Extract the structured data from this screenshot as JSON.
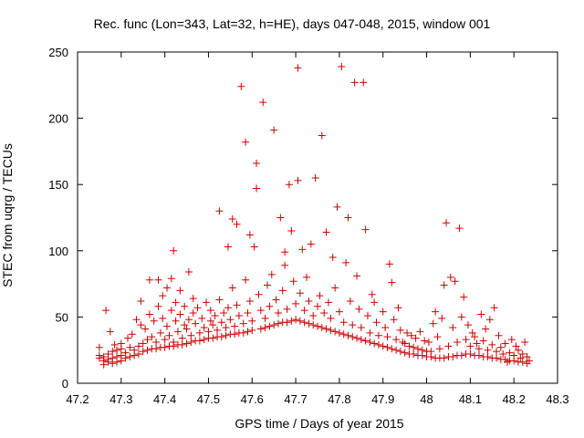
{
  "chart_data": {
    "type": "scatter",
    "title": "Rec. func (Lon=343, Lat=32, h=HE), days 047-048, 2015, window 001",
    "xlabel": "GPS time / Days of year 2015",
    "ylabel": "STEC from uqrg / TECUs",
    "xlim": [
      47.2,
      48.3
    ],
    "ylim": [
      0,
      250
    ],
    "xticks": [
      "47.2",
      "47.3",
      "47.4",
      "47.5",
      "47.6",
      "47.7",
      "47.8",
      "47.9",
      "48",
      "48.1",
      "48.2",
      "48.3"
    ],
    "yticks": [
      "0",
      "50",
      "100",
      "150",
      "200",
      "250"
    ],
    "grid": false,
    "legend": "none",
    "marker": "+",
    "color": "#cc0000",
    "series": [
      {
        "points": [
          [
            47.25,
            19
          ],
          [
            47.25,
            21
          ],
          [
            47.25,
            27
          ],
          [
            47.26,
            14
          ],
          [
            47.26,
            17
          ],
          [
            47.26,
            20
          ],
          [
            47.265,
            55
          ],
          [
            47.27,
            16
          ],
          [
            47.27,
            18
          ],
          [
            47.27,
            22
          ],
          [
            47.275,
            39
          ],
          [
            47.28,
            15
          ],
          [
            47.28,
            19
          ],
          [
            47.28,
            24
          ],
          [
            47.285,
            29
          ],
          [
            47.29,
            16
          ],
          [
            47.29,
            20
          ],
          [
            47.29,
            25
          ],
          [
            47.3,
            17
          ],
          [
            47.3,
            21
          ],
          [
            47.3,
            26
          ],
          [
            47.3,
            30
          ],
          [
            47.31,
            19
          ],
          [
            47.31,
            23
          ],
          [
            47.315,
            34
          ],
          [
            47.32,
            20
          ],
          [
            47.32,
            27
          ],
          [
            47.325,
            37
          ],
          [
            47.33,
            21
          ],
          [
            47.33,
            25
          ],
          [
            47.335,
            48
          ],
          [
            47.34,
            22
          ],
          [
            47.34,
            28
          ],
          [
            47.345,
            44
          ],
          [
            47.345,
            62
          ],
          [
            47.35,
            24
          ],
          [
            47.35,
            30
          ],
          [
            47.355,
            41
          ],
          [
            47.36,
            25
          ],
          [
            47.36,
            33
          ],
          [
            47.365,
            52
          ],
          [
            47.365,
            78
          ],
          [
            47.37,
            26
          ],
          [
            47.37,
            35
          ],
          [
            47.375,
            47
          ],
          [
            47.38,
            26
          ],
          [
            47.38,
            31
          ],
          [
            47.385,
            58
          ],
          [
            47.385,
            78
          ],
          [
            47.39,
            27
          ],
          [
            47.39,
            38
          ],
          [
            47.395,
            49
          ],
          [
            47.395,
            66
          ],
          [
            47.4,
            27
          ],
          [
            47.4,
            33
          ],
          [
            47.405,
            43
          ],
          [
            47.405,
            72
          ],
          [
            47.41,
            28
          ],
          [
            47.41,
            36
          ],
          [
            47.415,
            55
          ],
          [
            47.415,
            79
          ],
          [
            47.42,
            28
          ],
          [
            47.42,
            31
          ],
          [
            47.42,
            100
          ],
          [
            47.425,
            47
          ],
          [
            47.425,
            61
          ],
          [
            47.43,
            29
          ],
          [
            47.43,
            39
          ],
          [
            47.435,
            52
          ],
          [
            47.435,
            70
          ],
          [
            47.44,
            29
          ],
          [
            47.44,
            34
          ],
          [
            47.445,
            44
          ],
          [
            47.445,
            58
          ],
          [
            47.45,
            30
          ],
          [
            47.45,
            41
          ],
          [
            47.455,
            48
          ],
          [
            47.455,
            84
          ],
          [
            47.46,
            31
          ],
          [
            47.46,
            36
          ],
          [
            47.465,
            53
          ],
          [
            47.465,
            64
          ],
          [
            47.47,
            32
          ],
          [
            47.47,
            45
          ],
          [
            47.475,
            57
          ],
          [
            47.48,
            32
          ],
          [
            47.48,
            38
          ],
          [
            47.485,
            49
          ],
          [
            47.49,
            33
          ],
          [
            47.49,
            42
          ],
          [
            47.495,
            61
          ],
          [
            47.5,
            34
          ],
          [
            47.5,
            39
          ],
          [
            47.505,
            47
          ],
          [
            47.505,
            55
          ],
          [
            47.51,
            34
          ],
          [
            47.51,
            44
          ],
          [
            47.515,
            51
          ],
          [
            47.52,
            35
          ],
          [
            47.52,
            40
          ],
          [
            47.525,
            63
          ],
          [
            47.525,
            130
          ],
          [
            47.53,
            35
          ],
          [
            47.53,
            46
          ],
          [
            47.535,
            53
          ],
          [
            47.54,
            36
          ],
          [
            47.54,
            42
          ],
          [
            47.545,
            57
          ],
          [
            47.545,
            103
          ],
          [
            47.55,
            37
          ],
          [
            47.55,
            48
          ],
          [
            47.555,
            72
          ],
          [
            47.555,
            124
          ],
          [
            47.56,
            37
          ],
          [
            47.56,
            43
          ],
          [
            47.565,
            59
          ],
          [
            47.565,
            120
          ],
          [
            47.57,
            38
          ],
          [
            47.57,
            51
          ],
          [
            47.575,
            224
          ],
          [
            47.58,
            38
          ],
          [
            47.58,
            45
          ],
          [
            47.585,
            78
          ],
          [
            47.585,
            182
          ],
          [
            47.59,
            39
          ],
          [
            47.59,
            53
          ],
          [
            47.595,
            62
          ],
          [
            47.595,
            112
          ],
          [
            47.6,
            40
          ],
          [
            47.6,
            47
          ],
          [
            47.605,
            103
          ],
          [
            47.61,
            166
          ],
          [
            47.61,
            147
          ],
          [
            47.615,
            67
          ],
          [
            47.62,
            41
          ],
          [
            47.62,
            55
          ],
          [
            47.625,
            212
          ],
          [
            47.63,
            42
          ],
          [
            47.63,
            49
          ],
          [
            47.635,
            74
          ],
          [
            47.64,
            43
          ],
          [
            47.64,
            58
          ],
          [
            47.645,
            82
          ],
          [
            47.65,
            44
          ],
          [
            47.65,
            191
          ],
          [
            47.655,
            63
          ],
          [
            47.66,
            45
          ],
          [
            47.66,
            53
          ],
          [
            47.665,
            125
          ],
          [
            47.67,
            46
          ],
          [
            47.67,
            70
          ],
          [
            47.675,
            99
          ],
          [
            47.675,
            89
          ],
          [
            47.68,
            46
          ],
          [
            47.68,
            56
          ],
          [
            47.685,
            150
          ],
          [
            47.69,
            47
          ],
          [
            47.69,
            115
          ],
          [
            47.695,
            77
          ],
          [
            47.7,
            48
          ],
          [
            47.7,
            60
          ],
          [
            47.705,
            153
          ],
          [
            47.705,
            238
          ],
          [
            47.71,
            47
          ],
          [
            47.71,
            68
          ],
          [
            47.715,
            101
          ],
          [
            47.72,
            46
          ],
          [
            47.72,
            55
          ],
          [
            47.725,
            80
          ],
          [
            47.73,
            45
          ],
          [
            47.73,
            62
          ],
          [
            47.735,
            105
          ],
          [
            47.74,
            44
          ],
          [
            47.74,
            51
          ],
          [
            47.745,
            155
          ],
          [
            47.75,
            43
          ],
          [
            47.75,
            58
          ],
          [
            47.755,
            66
          ],
          [
            47.76,
            42
          ],
          [
            47.76,
            187
          ],
          [
            47.765,
            53
          ],
          [
            47.77,
            41
          ],
          [
            47.77,
            114
          ],
          [
            47.775,
            61
          ],
          [
            47.78,
            40
          ],
          [
            47.78,
            49
          ],
          [
            47.785,
            95
          ],
          [
            47.79,
            39
          ],
          [
            47.79,
            72
          ],
          [
            47.795,
            133
          ],
          [
            47.8,
            38
          ],
          [
            47.8,
            54
          ],
          [
            47.805,
            239
          ],
          [
            47.81,
            37
          ],
          [
            47.81,
            46
          ],
          [
            47.815,
            91
          ],
          [
            47.82,
            36
          ],
          [
            47.82,
            125
          ],
          [
            47.825,
            62
          ],
          [
            47.83,
            35
          ],
          [
            47.83,
            44
          ],
          [
            47.835,
            227
          ],
          [
            47.84,
            34
          ],
          [
            47.84,
            81
          ],
          [
            47.845,
            56
          ],
          [
            47.85,
            33
          ],
          [
            47.85,
            42
          ],
          [
            47.855,
            227
          ],
          [
            47.86,
            32
          ],
          [
            47.86,
            116
          ],
          [
            47.865,
            51
          ],
          [
            47.87,
            31
          ],
          [
            47.87,
            38
          ],
          [
            47.875,
            67
          ],
          [
            47.88,
            30
          ],
          [
            47.88,
            61
          ],
          [
            47.885,
            46
          ],
          [
            47.89,
            29
          ],
          [
            47.89,
            36
          ],
          [
            47.9,
            28
          ],
          [
            47.9,
            54
          ],
          [
            47.905,
            42
          ],
          [
            47.91,
            27
          ],
          [
            47.91,
            35
          ],
          [
            47.915,
            90
          ],
          [
            47.92,
            26
          ],
          [
            47.92,
            76
          ],
          [
            47.925,
            48
          ],
          [
            47.93,
            25
          ],
          [
            47.93,
            33
          ],
          [
            47.935,
            57
          ],
          [
            47.94,
            24
          ],
          [
            47.94,
            40
          ],
          [
            47.945,
            31
          ],
          [
            47.95,
            23
          ],
          [
            47.95,
            30
          ],
          [
            47.955,
            38
          ],
          [
            47.96,
            22
          ],
          [
            47.96,
            28
          ],
          [
            47.965,
            36
          ],
          [
            47.97,
            22
          ],
          [
            47.97,
            27
          ],
          [
            47.975,
            34
          ],
          [
            47.98,
            21
          ],
          [
            47.98,
            26
          ],
          [
            47.985,
            39
          ],
          [
            47.99,
            21
          ],
          [
            47.99,
            25
          ],
          [
            47.995,
            32
          ],
          [
            48,
            20
          ],
          [
            48,
            24
          ],
          [
            48.005,
            31
          ],
          [
            48.01,
            20
          ],
          [
            48.01,
            24
          ],
          [
            48.015,
            45
          ],
          [
            48.02,
            19
          ],
          [
            48.02,
            54
          ],
          [
            48.025,
            35
          ],
          [
            48.03,
            19
          ],
          [
            48.03,
            26
          ],
          [
            48.035,
            49
          ],
          [
            48.04,
            19
          ],
          [
            48.04,
            74
          ],
          [
            48.045,
            121
          ],
          [
            48.05,
            20
          ],
          [
            48.05,
            28
          ],
          [
            48.055,
            80
          ],
          [
            48.06,
            20
          ],
          [
            48.06,
            42
          ],
          [
            48.065,
            77
          ],
          [
            48.07,
            21
          ],
          [
            48.07,
            31
          ],
          [
            48.075,
            117
          ],
          [
            48.08,
            21
          ],
          [
            48.08,
            50
          ],
          [
            48.085,
            65
          ],
          [
            48.09,
            22
          ],
          [
            48.09,
            33
          ],
          [
            48.095,
            44
          ],
          [
            48.1,
            22
          ],
          [
            48.1,
            28
          ],
          [
            48.105,
            38
          ],
          [
            48.11,
            21
          ],
          [
            48.11,
            35
          ],
          [
            48.115,
            30
          ],
          [
            48.12,
            21
          ],
          [
            48.12,
            26
          ],
          [
            48.125,
            52
          ],
          [
            48.13,
            20
          ],
          [
            48.13,
            32
          ],
          [
            48.135,
            41
          ],
          [
            48.14,
            20
          ],
          [
            48.14,
            25
          ],
          [
            48.145,
            48
          ],
          [
            48.15,
            19
          ],
          [
            48.15,
            29
          ],
          [
            48.155,
            57
          ],
          [
            48.16,
            19
          ],
          [
            48.16,
            24
          ],
          [
            48.165,
            36
          ],
          [
            48.17,
            18
          ],
          [
            48.17,
            27
          ],
          [
            48.175,
            22
          ],
          [
            48.18,
            18
          ],
          [
            48.18,
            30
          ],
          [
            48.185,
            16
          ],
          [
            48.19,
            17
          ],
          [
            48.19,
            23
          ],
          [
            48.195,
            33
          ],
          [
            48.2,
            17
          ],
          [
            48.2,
            21
          ],
          [
            48.205,
            28
          ],
          [
            48.21,
            16
          ],
          [
            48.21,
            25
          ],
          [
            48.215,
            19
          ],
          [
            48.22,
            16
          ],
          [
            48.22,
            22
          ],
          [
            48.225,
            31
          ],
          [
            48.23,
            15
          ],
          [
            48.23,
            20
          ],
          [
            48.235,
            17
          ]
        ]
      }
    ]
  }
}
